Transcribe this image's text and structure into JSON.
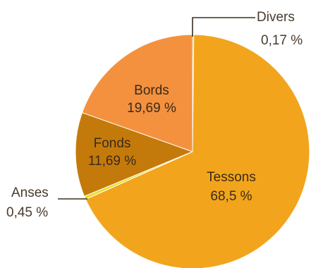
{
  "chart_data": {
    "type": "pie",
    "title": "",
    "slices": [
      {
        "label": "Divers",
        "value_text": "0,17 %",
        "value": 0.17,
        "color": "#c8b24a"
      },
      {
        "label": "Tessons",
        "value_text": "68,5 %",
        "value": 68.5,
        "color": "#f2a51c"
      },
      {
        "label": "Anses",
        "value_text": "0,45 %",
        "value": 0.45,
        "color": "#e8dd2a"
      },
      {
        "label": "Fonds",
        "value_text": "11,69 %",
        "value": 11.69,
        "color": "#c47a0a"
      },
      {
        "label": "Bords",
        "value_text": "19,69 %",
        "value": 19.69,
        "color": "#f4913f"
      }
    ],
    "start_angle_deg": 0,
    "direction": "clockwise",
    "legend": "none",
    "slice_border_color": "#ffffff"
  }
}
